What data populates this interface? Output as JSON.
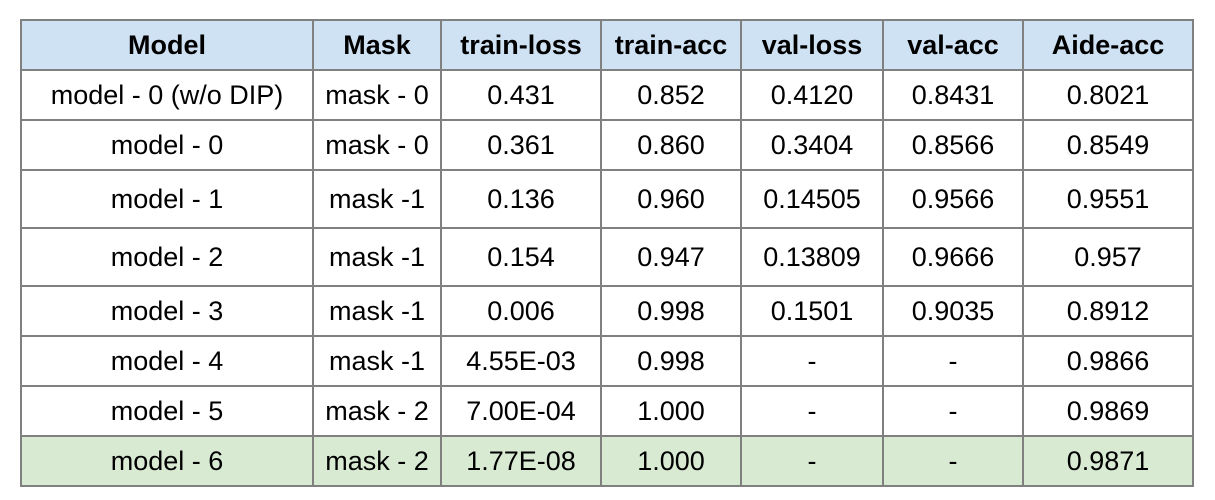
{
  "table": {
    "headers": [
      "Model",
      "Mask",
      "train-loss",
      "train-acc",
      "val-loss",
      "val-acc",
      "Aide-acc"
    ],
    "rows": [
      [
        "model - 0 (w/o DIP)",
        "mask - 0",
        "0.431",
        "0.852",
        "0.4120",
        "0.8431",
        "0.8021"
      ],
      [
        "model - 0",
        "mask - 0",
        "0.361",
        "0.860",
        "0.3404",
        "0.8566",
        "0.8549"
      ],
      [
        "model - 1",
        "mask -1",
        "0.136",
        "0.960",
        "0.14505",
        "0.9566",
        "0.9551"
      ],
      [
        "model - 2",
        "mask -1",
        "0.154",
        "0.947",
        "0.13809",
        "0.9666",
        "0.957"
      ],
      [
        "model - 3",
        "mask -1",
        "0.006",
        "0.998",
        "0.1501",
        "0.9035",
        "0.8912"
      ],
      [
        "model - 4",
        "mask -1",
        "4.55E-03",
        "0.998",
        "-",
        "-",
        "0.9866"
      ],
      [
        "model - 5",
        "mask - 2",
        "7.00E-04",
        "1.000",
        "-",
        "-",
        "0.9869"
      ],
      [
        "model - 6",
        "mask - 2",
        "1.77E-08",
        "1.000",
        "-",
        "-",
        "0.9871"
      ]
    ]
  },
  "colors": {
    "header_background": "#cfe2f3",
    "highlight_row_background": "#d9ead3",
    "border": "#808080"
  }
}
